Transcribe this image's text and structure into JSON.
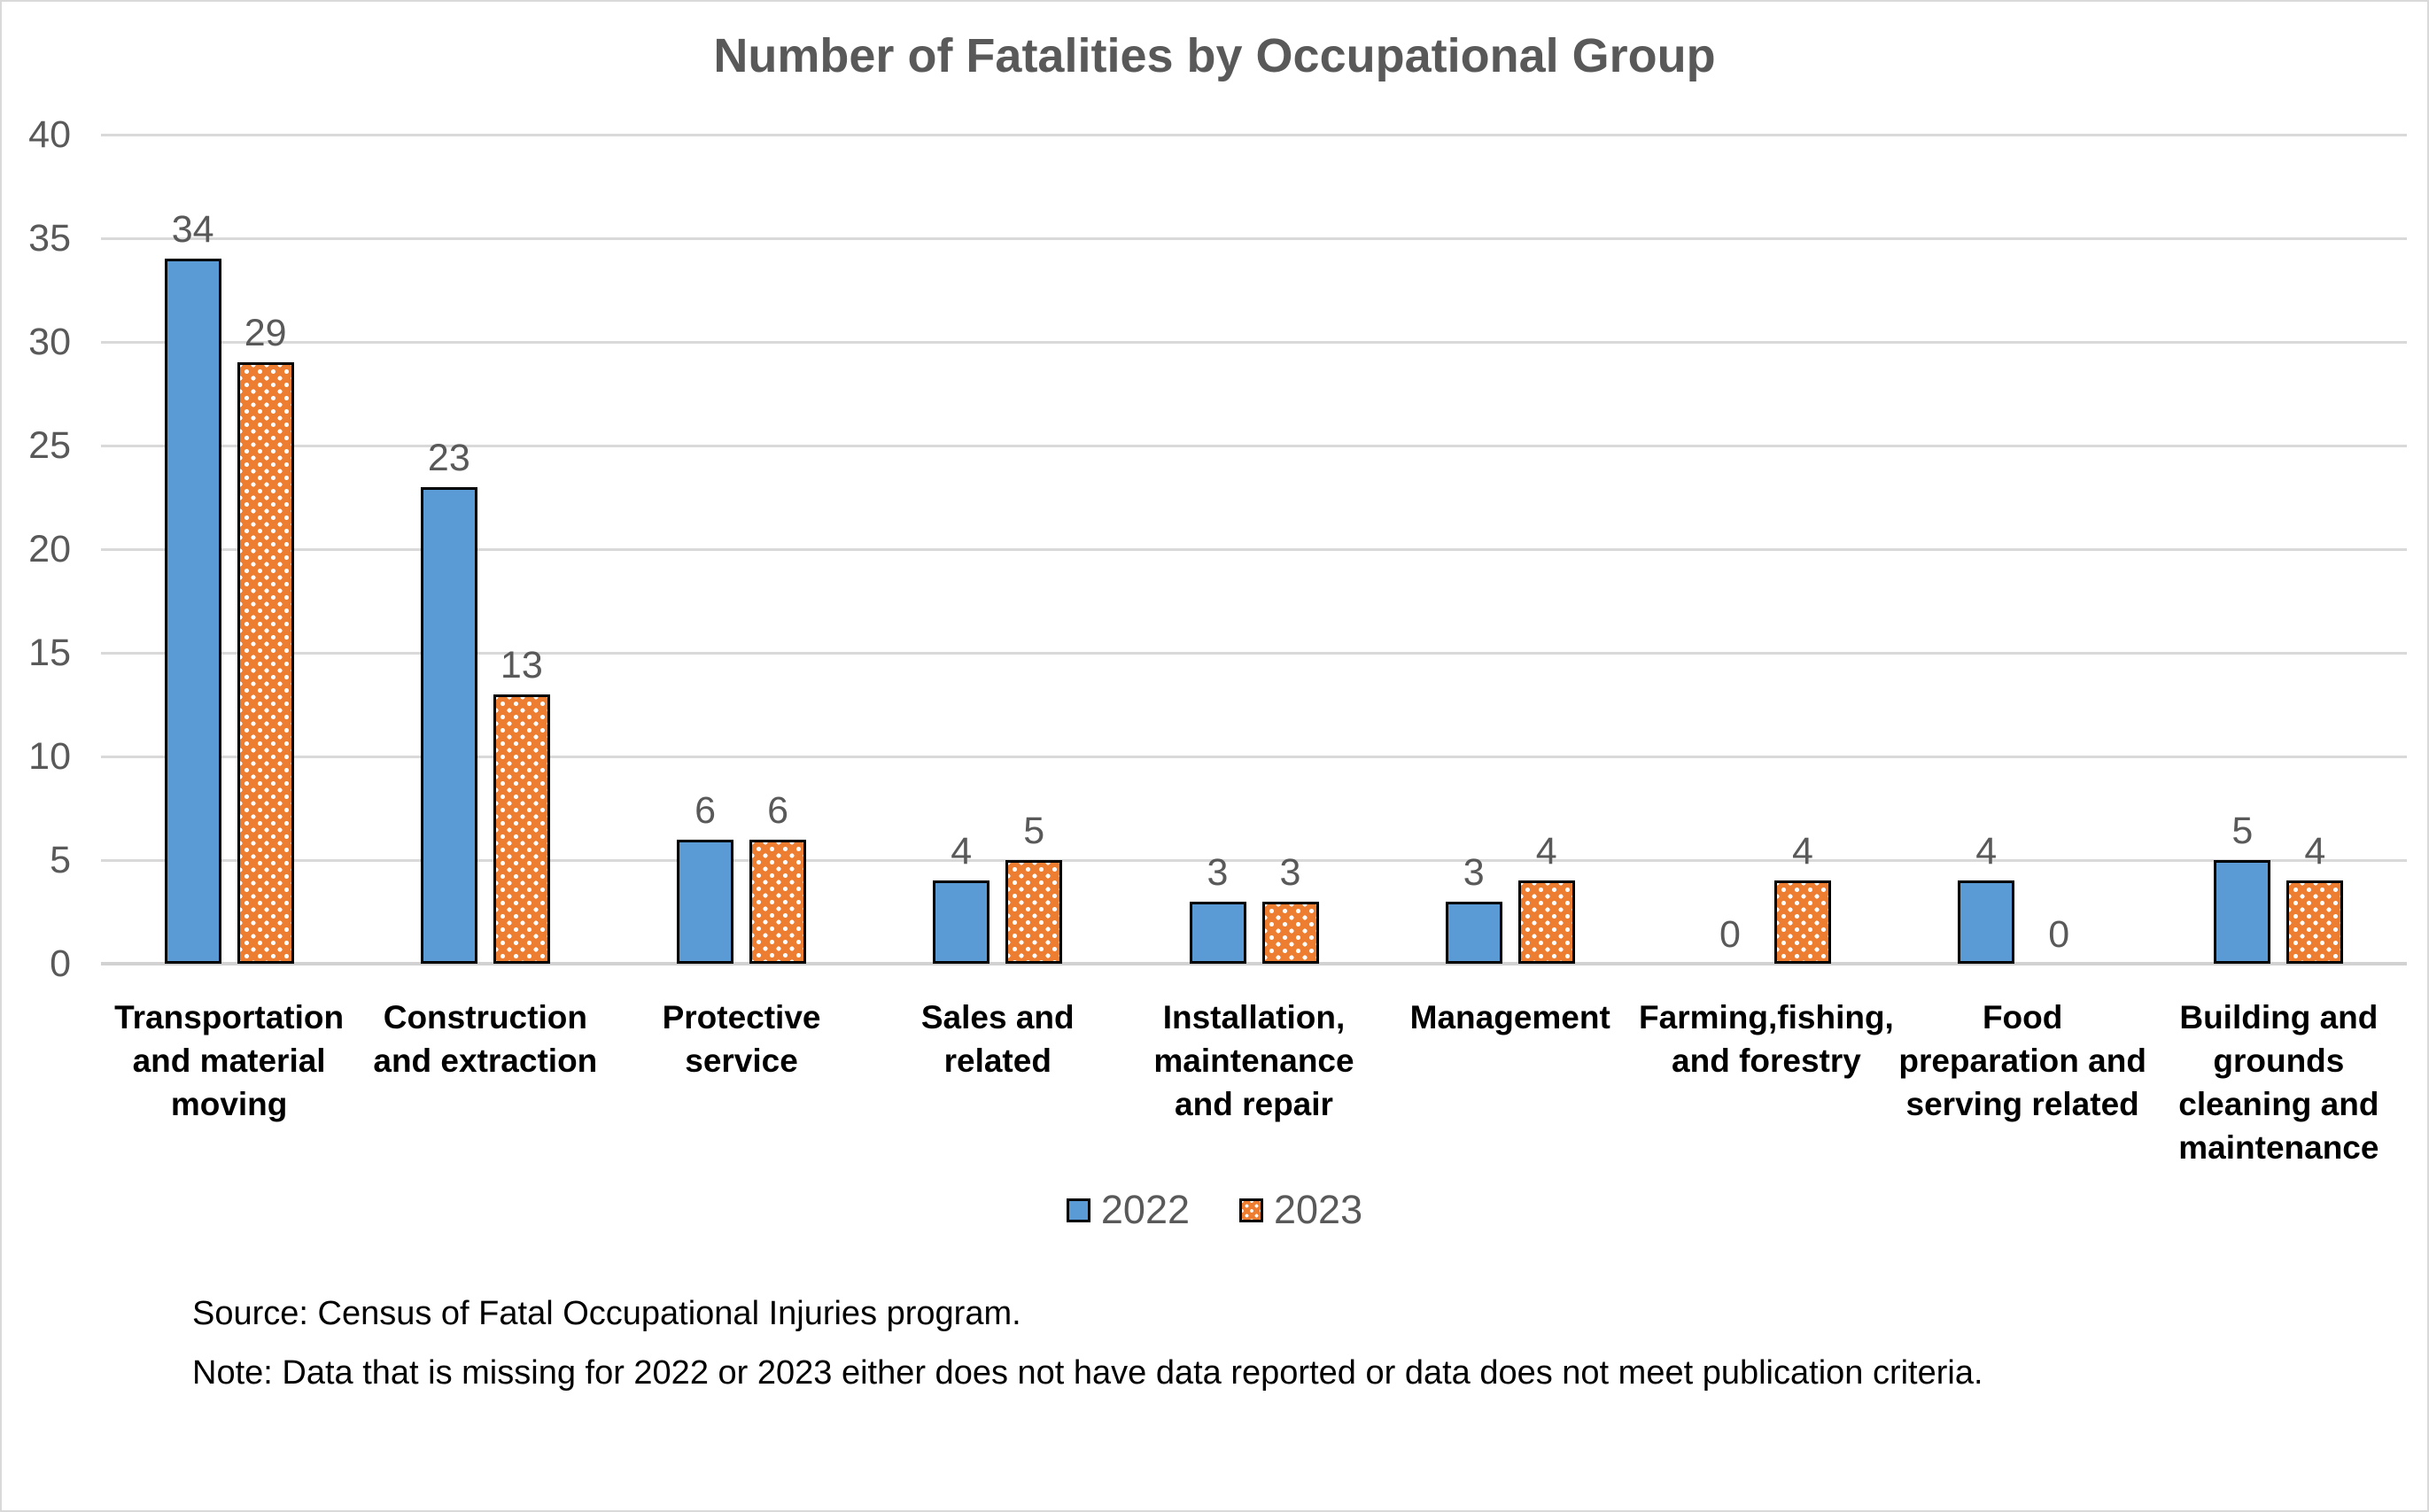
{
  "title": "Number of Fatalities by Occupational Group",
  "colors": {
    "series_2022": "#5B9BD5",
    "series_2023": "#ED7D31",
    "bar_border": "#000000",
    "gridline": "#D9D9D9",
    "axis_text": "#595959",
    "category_text": "#000000"
  },
  "chart_data": {
    "type": "bar",
    "title": "Number of Fatalities by Occupational Group",
    "categories": [
      "Transportation and material moving",
      "Construction and extraction",
      "Protective service",
      "Sales and related",
      "Installation, maintenance and repair",
      "Management",
      "Farming,fishing, and forestry",
      "Food preparation and serving related",
      "Building and grounds cleaning and maintenance"
    ],
    "category_label_lines": [
      "Transportation\nand material\nmoving",
      "Construction\nand extraction",
      "Protective\nservice",
      "Sales and\nrelated",
      "Installation,\nmaintenance\nand repair",
      "Management",
      "Farming,fishing,\nand forestry",
      "Food\npreparation and\nserving related",
      "Building and\ngrounds\ncleaning and\nmaintenance"
    ],
    "series": [
      {
        "name": "2022",
        "color": "#5B9BD5",
        "pattern": "solid",
        "values": [
          34,
          23,
          6,
          4,
          3,
          3,
          0,
          4,
          5
        ]
      },
      {
        "name": "2023",
        "color": "#ED7D31",
        "pattern": "dots",
        "values": [
          29,
          13,
          6,
          5,
          3,
          4,
          4,
          0,
          4
        ]
      }
    ],
    "ylim": [
      0,
      40
    ],
    "ytick_step": 5,
    "grid": true,
    "legend_position": "bottom",
    "value_labels": true,
    "xlabel": "",
    "ylabel": ""
  },
  "footer": {
    "source": "Source: Census of Fatal Occupational Injuries program.",
    "note": "Note: Data that is missing for 2022 or 2023 either does not have data reported or data does not meet publication criteria."
  }
}
